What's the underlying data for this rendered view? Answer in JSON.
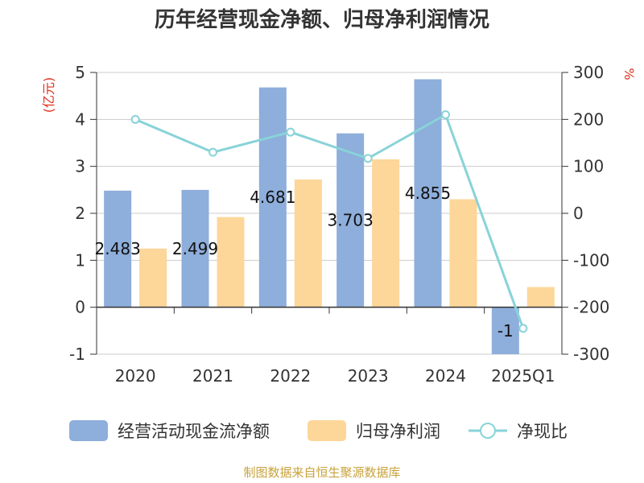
{
  "chart_data": {
    "type": "bar",
    "title": "历年经营现金净额、归母净利润情况",
    "categories": [
      "2020",
      "2021",
      "2022",
      "2023",
      "2024",
      "2025Q1"
    ],
    "y_left": {
      "unit": "(亿元)",
      "min": -1,
      "max": 5,
      "ticks": [
        -1,
        0,
        1,
        2,
        3,
        4,
        5
      ]
    },
    "y_right": {
      "unit": "%",
      "min": -300,
      "max": 300,
      "ticks": [
        -300,
        -200,
        -100,
        0,
        100,
        200,
        300
      ]
    },
    "series": [
      {
        "name": "经营活动现金流净额",
        "type": "bar",
        "axis": "left",
        "color": "#8eaedb",
        "values": [
          2.483,
          2.499,
          4.681,
          3.703,
          4.855,
          -1
        ],
        "labels": [
          "2.483",
          "2.499",
          "4.681",
          "3.703",
          "4.855",
          "-1"
        ]
      },
      {
        "name": "归母净利润",
        "type": "bar",
        "axis": "left",
        "color": "#fdd699",
        "values": [
          1.25,
          1.92,
          2.72,
          3.15,
          2.3,
          0.43
        ]
      },
      {
        "name": "净现比",
        "type": "line",
        "axis": "right",
        "color": "#88d3d8",
        "values": [
          200,
          130,
          173,
          117,
          210,
          -245
        ]
      }
    ],
    "grid": true,
    "legend": "bottom",
    "source": "制图数据来自恒生聚源数据库"
  }
}
